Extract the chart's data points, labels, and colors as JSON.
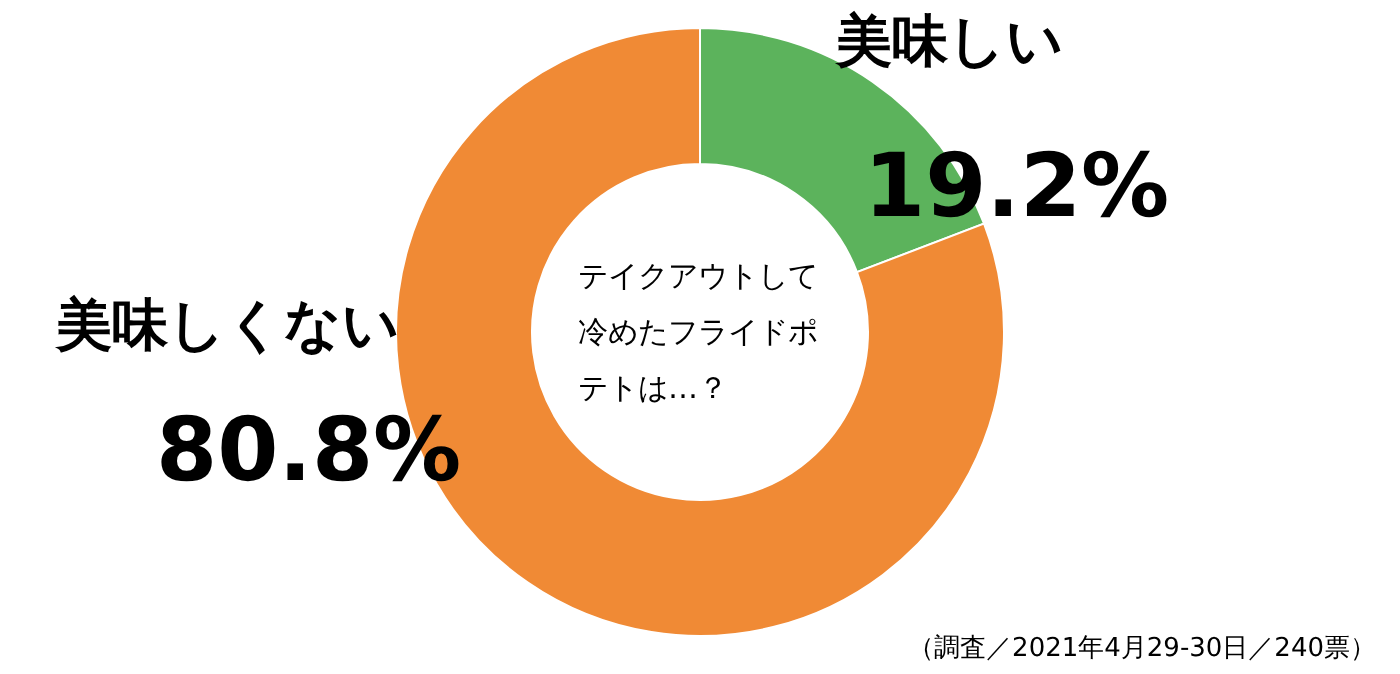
{
  "chart_data": {
    "type": "donut",
    "title": "テイクアウトして冷めたフライドポテトは…？",
    "categories": [
      "美味しい",
      "美味しくない"
    ],
    "values": [
      19.2,
      80.8
    ],
    "colors": [
      "#5cb35c",
      "#f08a35"
    ],
    "value_labels": [
      "19.2%",
      "80.8%"
    ],
    "annotations": [
      "（調査／2021年4月29-30日／240票）"
    ]
  }
}
